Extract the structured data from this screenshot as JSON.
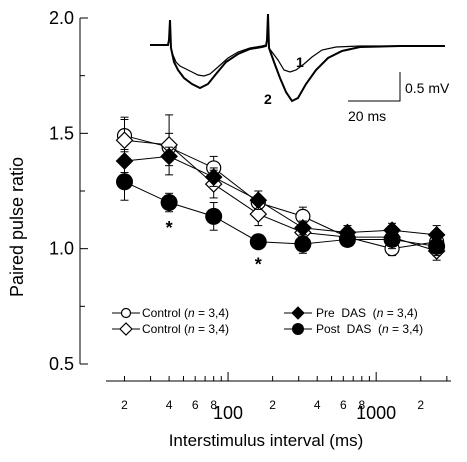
{
  "chart_data": {
    "type": "line",
    "xlabel": "Interstimulus interval (ms)",
    "ylabel": "Paired pulse ratio",
    "x_scale": "log",
    "xlim": [
      15,
      3200
    ],
    "ylim": [
      0.5,
      2.0
    ],
    "y_ticks": [
      "0.5",
      "1.0",
      "1.5",
      "2.0"
    ],
    "x_tick_labels": [
      "2",
      "4",
      "6",
      "8",
      "100",
      "2",
      "4",
      "6",
      "8",
      "1000",
      "2"
    ],
    "grid": false,
    "legend_position": "lower-center",
    "series": [
      {
        "legend": [
          "Control (",
          "n",
          " = 3,4)"
        ],
        "marker": "open-circle",
        "x": [
          20,
          40,
          80,
          160,
          320,
          640,
          1280,
          2560
        ],
        "y": [
          1.49,
          1.44,
          1.35,
          1.2,
          1.14,
          1.05,
          1.0,
          1.03
        ],
        "err": [
          0.07,
          0.06,
          0.05,
          0.03,
          0.04,
          0.03,
          0.03,
          0.03
        ]
      },
      {
        "legend": [
          "Control (",
          "n",
          " = 3,4)"
        ],
        "marker": "open-diamond",
        "x": [
          20,
          40,
          80,
          160,
          320,
          640,
          1280,
          2560
        ],
        "y": [
          1.47,
          1.45,
          1.28,
          1.15,
          1.07,
          1.05,
          1.05,
          0.99
        ],
        "err": [
          0.1,
          0.13,
          0.06,
          0.05,
          0.05,
          0.04,
          0.04,
          0.04
        ]
      },
      {
        "legend": [
          "Pre  DAS  (",
          "n",
          " = 3,4)"
        ],
        "marker": "filled-diamond",
        "x": [
          20,
          40,
          80,
          160,
          320,
          640,
          1280,
          2560
        ],
        "y": [
          1.38,
          1.4,
          1.31,
          1.21,
          1.09,
          1.07,
          1.08,
          1.06
        ],
        "err": [
          0.05,
          0.04,
          0.04,
          0.04,
          0.03,
          0.03,
          0.03,
          0.04
        ]
      },
      {
        "legend": [
          "Post  DAS  (",
          "n",
          " = 3,4)"
        ],
        "marker": "filled-circle",
        "x": [
          20,
          40,
          80,
          160,
          320,
          640,
          1280,
          2560
        ],
        "y": [
          1.29,
          1.2,
          1.14,
          1.03,
          1.02,
          1.04,
          1.04,
          1.01
        ],
        "err": [
          0.08,
          0.04,
          0.06,
          0.03,
          0.04,
          0.03,
          0.04,
          0.04
        ]
      }
    ],
    "significance_markers": [
      {
        "x": 40,
        "text": "*"
      },
      {
        "x": 160,
        "text": "*"
      }
    ],
    "inset": {
      "trace_labels": [
        "1",
        "2"
      ],
      "scale_y_label": "0.5 mV",
      "scale_x_label": "20 ms"
    }
  }
}
